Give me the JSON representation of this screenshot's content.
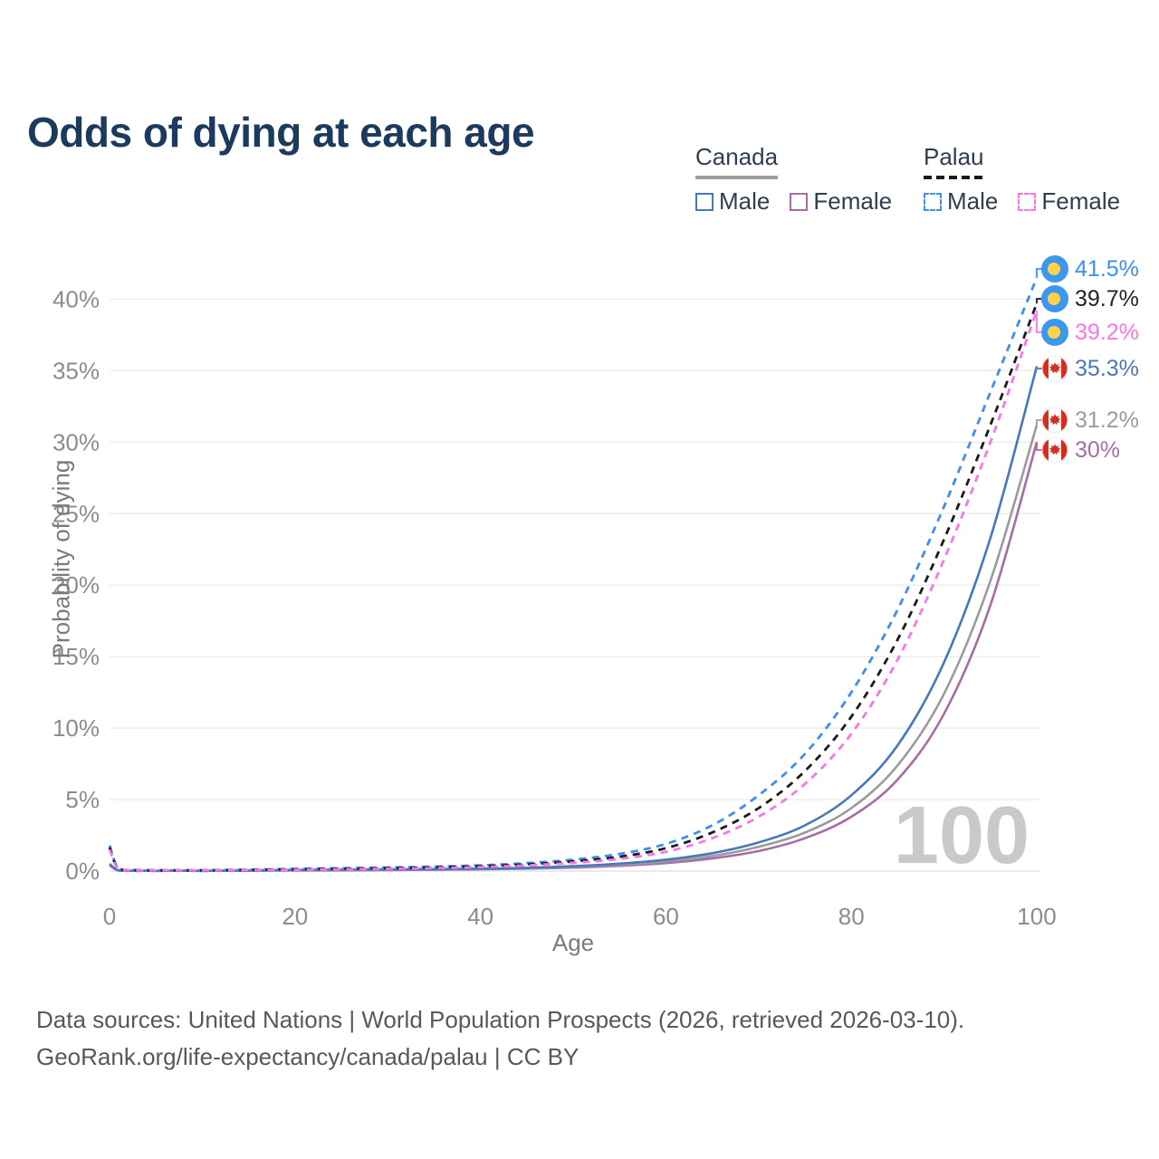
{
  "title": "Odds of dying at each age",
  "legend": {
    "groups": [
      {
        "id": "canada",
        "title": "Canada",
        "style": "solid",
        "swatch_color": "#9e9e9e",
        "items": [
          {
            "label": "Male",
            "series_index": 3
          },
          {
            "label": "Female",
            "series_index": 5
          }
        ]
      },
      {
        "id": "palau",
        "title": "Palau",
        "style": "dashed",
        "swatch_color": "#1a1a1a",
        "items": [
          {
            "label": "Male",
            "series_index": 0
          },
          {
            "label": "Female",
            "series_index": 2
          }
        ]
      }
    ]
  },
  "chart_data": {
    "type": "line",
    "title": "Odds of dying at each age",
    "xlabel": "Age",
    "ylabel": "Probability of dying",
    "xlim": [
      0,
      100
    ],
    "ylim": [
      0,
      43
    ],
    "x_ticks": [
      0,
      20,
      40,
      60,
      80,
      100
    ],
    "y_ticks": [
      0,
      5,
      10,
      15,
      20,
      25,
      30,
      35,
      40
    ],
    "y_tick_labels": [
      "0%",
      "5%",
      "10%",
      "15%",
      "20%",
      "25%",
      "30%",
      "35%",
      "40%"
    ],
    "grid": "horizontal",
    "legend_position": "top-right",
    "age_marker": "100",
    "ages": [
      0,
      1,
      3,
      5,
      10,
      15,
      20,
      25,
      30,
      35,
      40,
      45,
      50,
      55,
      60,
      65,
      70,
      75,
      80,
      85,
      90,
      95,
      100
    ],
    "series": [
      {
        "name": "Palau Male",
        "country": "Palau",
        "sex": "male",
        "dash": "dashed",
        "color": "#3b8ef2",
        "label_color": "#3b8ef2",
        "flag": "palau",
        "end_label": "41.5%",
        "end_value": 41.5,
        "values": [
          1.8,
          0.15,
          0.07,
          0.06,
          0.06,
          0.1,
          0.15,
          0.2,
          0.25,
          0.31,
          0.4,
          0.56,
          0.8,
          1.2,
          1.9,
          3.2,
          5.3,
          8.2,
          12.5,
          18.3,
          25.5,
          33.5,
          41.5
        ]
      },
      {
        "name": "Palau",
        "country": "Palau",
        "sex": "both",
        "dash": "dashed",
        "color": "#1a1a1a",
        "label_color": "#222222",
        "flag": "palau",
        "end_label": "39.7%",
        "end_value": 39.7,
        "values": [
          1.65,
          0.13,
          0.06,
          0.05,
          0.05,
          0.08,
          0.12,
          0.16,
          0.2,
          0.26,
          0.34,
          0.47,
          0.68,
          1.0,
          1.6,
          2.7,
          4.4,
          7.0,
          10.8,
          16.2,
          23.2,
          31.2,
          39.7
        ]
      },
      {
        "name": "Palau Female",
        "country": "Palau",
        "sex": "female",
        "dash": "dashed",
        "color": "#fc74ea",
        "label_color": "#fc74ea",
        "flag": "palau",
        "end_label": "39.2%",
        "end_value": 39.2,
        "values": [
          1.5,
          0.12,
          0.05,
          0.05,
          0.05,
          0.07,
          0.09,
          0.12,
          0.16,
          0.21,
          0.28,
          0.4,
          0.58,
          0.85,
          1.35,
          2.3,
          3.8,
          6.1,
          9.6,
          14.8,
          21.8,
          30.0,
          39.2
        ]
      },
      {
        "name": "Canada Male",
        "country": "Canada",
        "sex": "male",
        "dash": "solid",
        "color": "#4778bb",
        "label_color": "#4778bb",
        "flag": "canada",
        "end_label": "35.3%",
        "end_value": 35.3,
        "values": [
          0.5,
          0.04,
          0.01,
          0.01,
          0.01,
          0.04,
          0.08,
          0.1,
          0.12,
          0.14,
          0.17,
          0.23,
          0.34,
          0.52,
          0.8,
          1.25,
          2.0,
          3.2,
          5.3,
          8.8,
          14.6,
          23.3,
          35.3
        ]
      },
      {
        "name": "Canada",
        "country": "Canada",
        "sex": "both",
        "dash": "solid",
        "color": "#9b9b9b",
        "label_color": "#9b9b9b",
        "flag": "canada",
        "end_label": "31.2%",
        "end_value": 31.2,
        "values": [
          0.45,
          0.03,
          0.01,
          0.01,
          0.01,
          0.03,
          0.06,
          0.08,
          0.1,
          0.12,
          0.15,
          0.2,
          0.29,
          0.44,
          0.67,
          1.05,
          1.7,
          2.7,
          4.4,
          7.4,
          12.4,
          20.3,
          31.2
        ]
      },
      {
        "name": "Canada Female",
        "country": "Canada",
        "sex": "female",
        "dash": "solid",
        "color": "#a76ba8",
        "label_color": "#a76ba8",
        "flag": "canada",
        "end_label": "30%",
        "end_value": 30.0,
        "values": [
          0.4,
          0.03,
          0.01,
          0.01,
          0.01,
          0.02,
          0.04,
          0.05,
          0.07,
          0.09,
          0.12,
          0.17,
          0.24,
          0.37,
          0.56,
          0.88,
          1.4,
          2.3,
          3.8,
          6.4,
          11.0,
          18.6,
          30.0
        ]
      }
    ]
  },
  "footer": {
    "line1": "Data sources: United Nations | World Population Prospects (2026, retrieved 2026-03-10).",
    "line2": "GeoRank.org/life-expectancy/canada/palau | CC BY"
  }
}
